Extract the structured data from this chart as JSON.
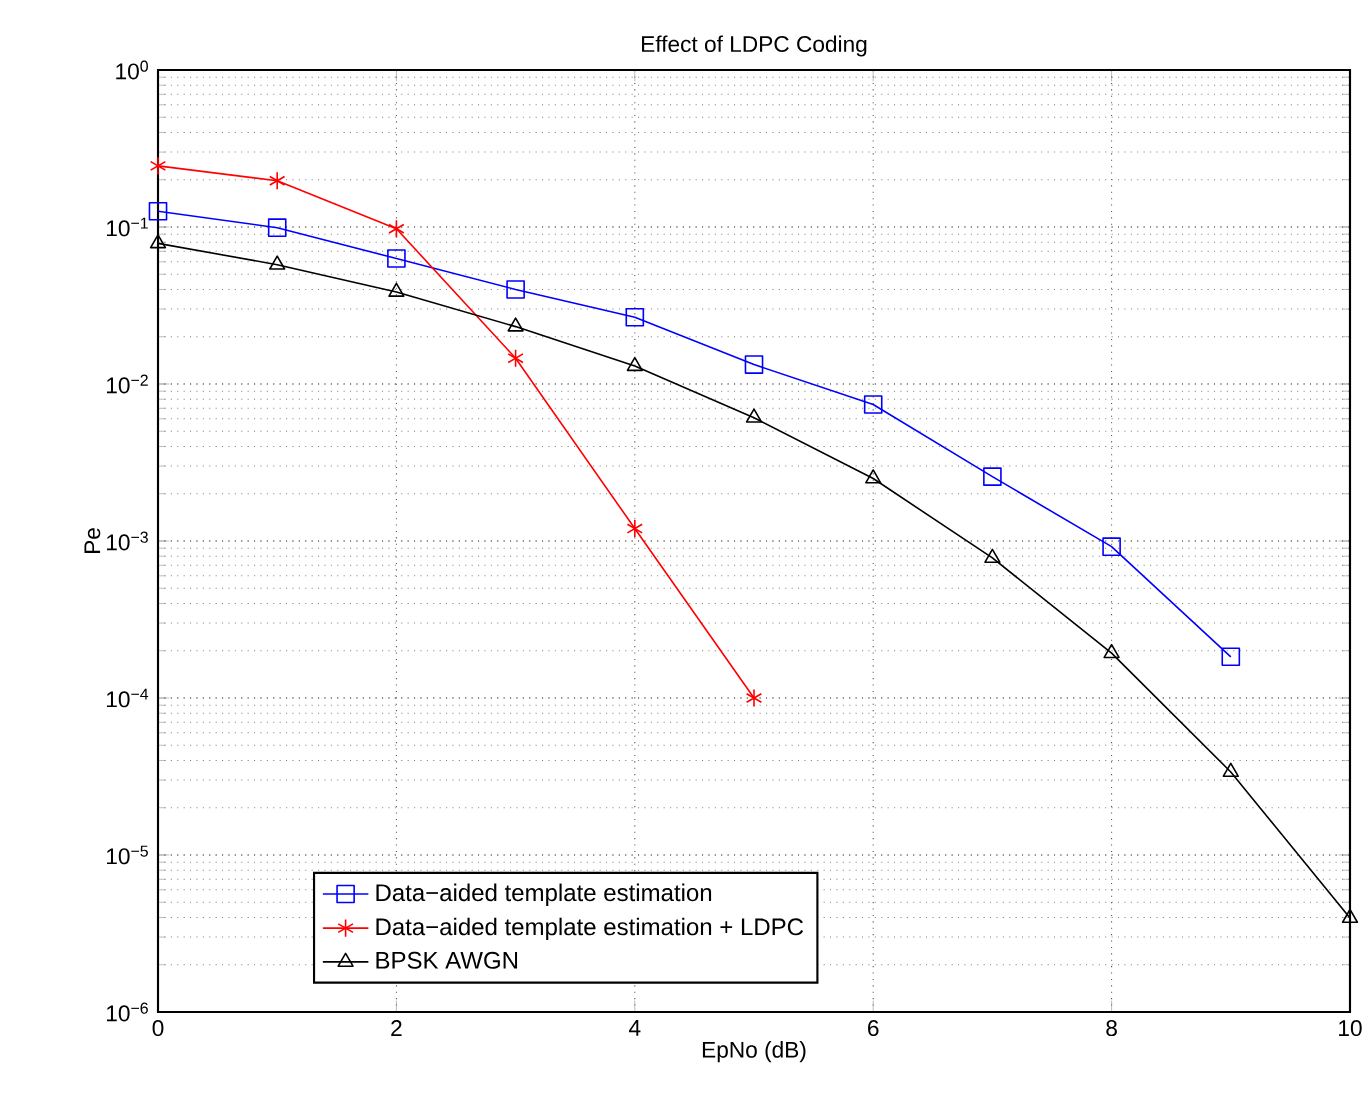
{
  "chart_data": {
    "type": "line",
    "title": "Effect of LDPC Coding",
    "xlabel": "EpNo (dB)",
    "ylabel": "Pe",
    "log": "y",
    "grid": true,
    "legend": "bottom left",
    "line_style": "solid",
    "xlim": [
      0,
      10
    ],
    "xticks": [
      0,
      2,
      4,
      6,
      8,
      10
    ],
    "ylim": [
      1e-06,
      1
    ],
    "yticks": [
      {
        "value": 1e-06,
        "label": "10$^{−6}$"
      },
      {
        "value": 1e-05,
        "label": "10$^{−5}$"
      },
      {
        "value": 0.0001,
        "label": "10$^{−4}$"
      },
      {
        "value": 0.001,
        "label": "10$^{−3}$"
      },
      {
        "value": 0.01,
        "label": "10$^{−2}$"
      },
      {
        "value": 0.1,
        "label": "10$^{−1}$"
      },
      {
        "value": 1,
        "label": "10$^{0}$"
      }
    ],
    "series": [
      {
        "name": "Data−aided template estimation",
        "color": "#0000ff",
        "marker": "square",
        "x": [
          0,
          1,
          2,
          3,
          4,
          5,
          6,
          7,
          8,
          9
        ],
        "values": [
          0.126,
          0.099,
          0.063,
          0.04,
          0.0266,
          0.0133,
          0.0074,
          0.00257,
          0.00092,
          0.000183
        ]
      },
      {
        "name": "Data−aided template estimation + LDPC",
        "color": "#ff0000",
        "marker": "cross",
        "x": [
          0,
          1,
          2,
          3,
          4,
          5
        ],
        "values": [
          0.245,
          0.197,
          0.0975,
          0.0146,
          0.0012,
          0.0001
        ]
      },
      {
        "name": "BPSK AWGN",
        "color": "#000000",
        "marker": "triangle",
        "x": [
          0,
          1,
          2,
          3,
          4,
          5,
          6,
          7,
          8,
          9,
          10
        ],
        "values": [
          0.0787,
          0.0575,
          0.0386,
          0.0232,
          0.013,
          0.0061,
          0.0025,
          0.00078,
          0.000193,
          3.38e-05,
          3.97e-06
        ]
      }
    ]
  }
}
